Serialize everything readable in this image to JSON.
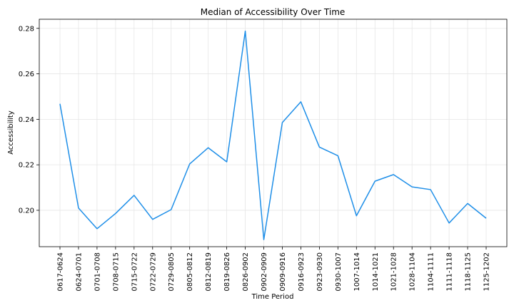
{
  "chart_data": {
    "type": "line",
    "title": "Median of Accessibility Over Time",
    "xlabel": "Time Period",
    "ylabel": "Accessibility",
    "categories": [
      "0617-0624",
      "0624-0701",
      "0701-0708",
      "0708-0715",
      "0715-0722",
      "0722-0729",
      "0729-0805",
      "0805-0812",
      "0812-0819",
      "0819-0826",
      "0826-0902",
      "0902-0909",
      "0909-0916",
      "0916-0923",
      "0923-0930",
      "0930-1007",
      "1007-1014",
      "1014-1021",
      "1021-1028",
      "1028-1104",
      "1104-1111",
      "1111-1118",
      "1118-1125",
      "1125-1202"
    ],
    "series": [
      {
        "values": [
          0.2468,
          0.201,
          0.1919,
          0.1986,
          0.2066,
          0.196,
          0.2003,
          0.2204,
          0.2275,
          0.2213,
          0.2788,
          0.1871,
          0.2386,
          0.2477,
          0.2278,
          0.224,
          0.1976,
          0.2128,
          0.2157,
          0.2103,
          0.2091,
          0.1944,
          0.203,
          0.1965
        ],
        "color": "#1f8fe8"
      }
    ],
    "ylim": [
      0.184,
      0.284
    ],
    "yticks": [
      0.2,
      0.22,
      0.24,
      0.26,
      0.28
    ],
    "ytick_labels": [
      "0.20",
      "0.22",
      "0.24",
      "0.26",
      "0.28"
    ],
    "grid": true,
    "legend": "none"
  }
}
